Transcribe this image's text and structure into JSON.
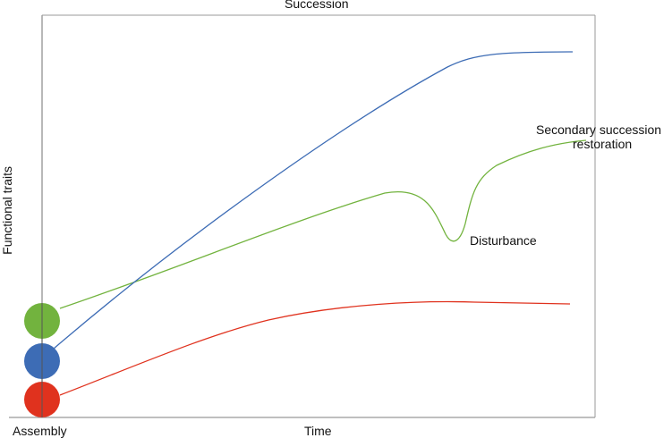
{
  "title": "Succession",
  "x_axis_label": "Time",
  "y_axis_label": "Functional traits",
  "origin_label": "Assembly",
  "annotations": {
    "disturbance": "Disturbance",
    "secondary_line1": "Secondary succession",
    "secondary_line2": "restoration"
  },
  "colors": {
    "green": "#72b33e",
    "blue": "#3d6cb5",
    "red": "#e0321e",
    "axis": "#999999"
  }
}
